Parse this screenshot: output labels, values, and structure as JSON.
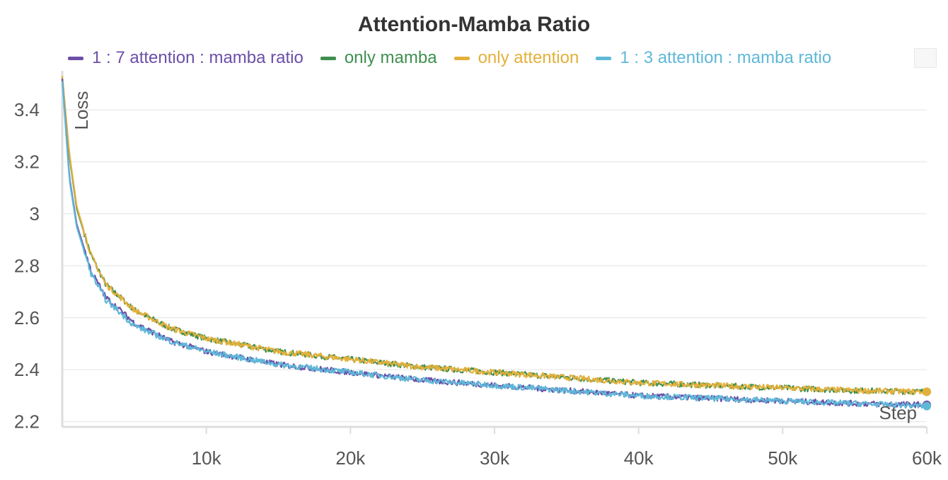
{
  "chart_data": {
    "type": "line",
    "title": "Attention-Mamba Ratio",
    "xlabel": "Step",
    "ylabel": "Loss",
    "xlim": [
      0,
      60000
    ],
    "ylim": [
      2.18,
      3.55
    ],
    "grid": true,
    "legend_position": "top",
    "x_ticks": [
      {
        "value": 10000,
        "label": "10k"
      },
      {
        "value": 20000,
        "label": "20k"
      },
      {
        "value": 30000,
        "label": "30k"
      },
      {
        "value": 40000,
        "label": "40k"
      },
      {
        "value": 50000,
        "label": "50k"
      },
      {
        "value": 60000,
        "label": "60k"
      }
    ],
    "y_ticks": [
      {
        "value": 2.2,
        "label": "2.2"
      },
      {
        "value": 2.4,
        "label": "2.4"
      },
      {
        "value": 2.6,
        "label": "2.6"
      },
      {
        "value": 2.8,
        "label": "2.8"
      },
      {
        "value": 3.0,
        "label": "3"
      },
      {
        "value": 3.2,
        "label": "3.2"
      },
      {
        "value": 3.4,
        "label": "3.4"
      }
    ],
    "x": [
      0,
      500,
      1000,
      2000,
      3000,
      5000,
      7500,
      10000,
      15000,
      20000,
      25000,
      30000,
      35000,
      40000,
      45000,
      50000,
      55000,
      60000
    ],
    "series": [
      {
        "name": "1 : 7 attention : mamba ratio",
        "color": "#6b4fa8",
        "values": [
          3.52,
          3.14,
          2.96,
          2.78,
          2.68,
          2.58,
          2.51,
          2.47,
          2.42,
          2.39,
          2.36,
          2.34,
          2.32,
          2.3,
          2.29,
          2.28,
          2.27,
          2.265
        ]
      },
      {
        "name": "only mamba",
        "color": "#3f8f4f",
        "values": [
          3.52,
          3.22,
          3.02,
          2.84,
          2.73,
          2.63,
          2.56,
          2.52,
          2.47,
          2.44,
          2.41,
          2.39,
          2.37,
          2.35,
          2.34,
          2.33,
          2.32,
          2.315
        ]
      },
      {
        "name": "only attention",
        "color": "#e3b03c",
        "values": [
          3.53,
          3.23,
          3.03,
          2.84,
          2.73,
          2.63,
          2.56,
          2.52,
          2.47,
          2.44,
          2.41,
          2.39,
          2.37,
          2.35,
          2.34,
          2.33,
          2.32,
          2.315
        ]
      },
      {
        "name": "1 : 3 attention : mamba ratio",
        "color": "#5fb8d8",
        "values": [
          3.51,
          3.13,
          2.95,
          2.77,
          2.67,
          2.57,
          2.51,
          2.47,
          2.42,
          2.39,
          2.36,
          2.34,
          2.32,
          2.3,
          2.29,
          2.28,
          2.27,
          2.26
        ]
      }
    ]
  }
}
